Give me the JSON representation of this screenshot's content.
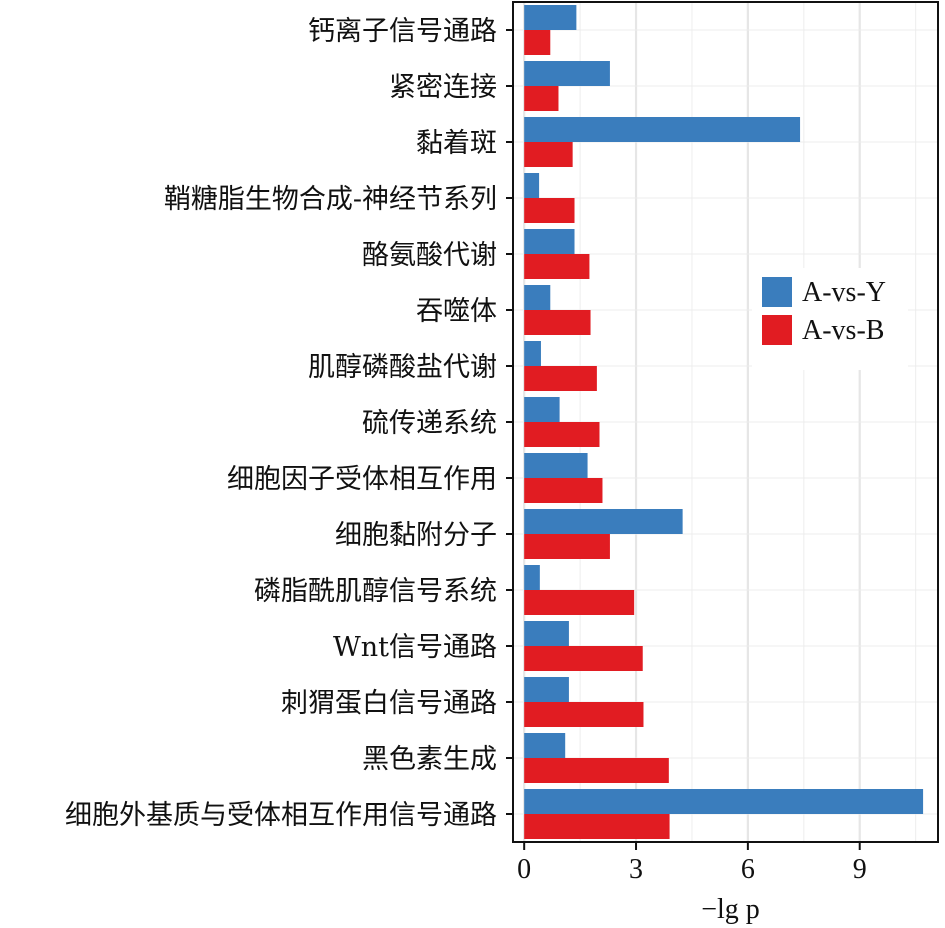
{
  "chart_data": {
    "type": "bar",
    "orientation": "horizontal",
    "categories": [
      "钙离子信号通路",
      "紧密连接",
      "黏着斑",
      "鞘糖脂生物合成-神经节系列",
      "酪氨酸代谢",
      "吞噬体",
      "肌醇磷酸盐代谢",
      "硫传递系统",
      "细胞因子受体相互作用",
      "细胞黏附分子",
      "磷脂酰肌醇信号系统",
      "Wnt信号通路",
      "刺猬蛋白信号通路",
      "黑色素生成",
      "细胞外基质与受体相互作用信号通路"
    ],
    "series": [
      {
        "name": "A-vs-Y",
        "color": "#3a7dbd",
        "values": [
          1.4,
          2.3,
          7.4,
          0.4,
          1.35,
          0.7,
          0.45,
          0.95,
          1.7,
          4.25,
          0.42,
          1.2,
          1.2,
          1.1,
          10.7
        ]
      },
      {
        "name": "A-vs-B",
        "color": "#e11c22",
        "values": [
          0.7,
          0.92,
          1.3,
          1.35,
          1.75,
          1.78,
          1.95,
          2.02,
          2.1,
          2.3,
          2.95,
          3.18,
          3.2,
          3.88,
          3.9
        ]
      }
    ],
    "xlabel": "−lg p",
    "xlim": [
      -0.3,
      11.1
    ],
    "xticks": [
      0,
      3,
      6,
      9
    ],
    "xtick_labels": [
      "0",
      "3",
      "6",
      "9"
    ],
    "grid": true,
    "legend_position": "right"
  }
}
